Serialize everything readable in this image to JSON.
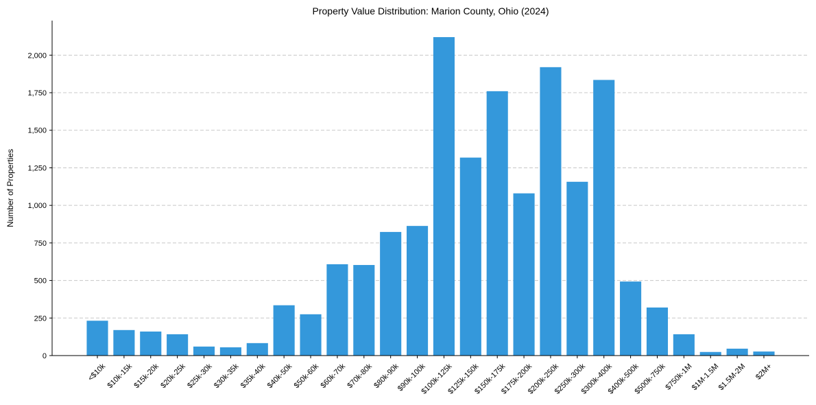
{
  "chart_data": {
    "type": "bar",
    "title": "Property Value Distribution: Marion County, Ohio (2024)",
    "xlabel": "",
    "ylabel": "Number of Properties",
    "ylim": [
      0,
      2230
    ],
    "yticks": [
      0,
      250,
      500,
      750,
      1000,
      1250,
      1500,
      1750,
      2000
    ],
    "ytick_labels": [
      "0",
      "250",
      "500",
      "750",
      "1,000",
      "1,250",
      "1,500",
      "1,750",
      "2,000"
    ],
    "grid": true,
    "bar_color": "#3498db",
    "categories": [
      "<$10k",
      "$10k-15k",
      "$15k-20k",
      "$20k-25k",
      "$25k-30k",
      "$30k-35k",
      "$35k-40k",
      "$40k-50k",
      "$50k-60k",
      "$60k-70k",
      "$70k-80k",
      "$80k-90k",
      "$90k-100k",
      "$100k-125k",
      "$125k-150k",
      "$150k-175k",
      "$175k-200k",
      "$200k-250k",
      "$250k-300k",
      "$300k-400k",
      "$400k-500k",
      "$500k-750k",
      "$750k-1M",
      "$1M-1.5M",
      "$1.5M-2M",
      "$2M+"
    ],
    "values": [
      232,
      170,
      160,
      142,
      60,
      55,
      83,
      335,
      275,
      608,
      603,
      823,
      863,
      2120,
      1318,
      1760,
      1080,
      1920,
      1157,
      1835,
      493,
      320,
      142,
      24,
      46,
      27
    ]
  }
}
